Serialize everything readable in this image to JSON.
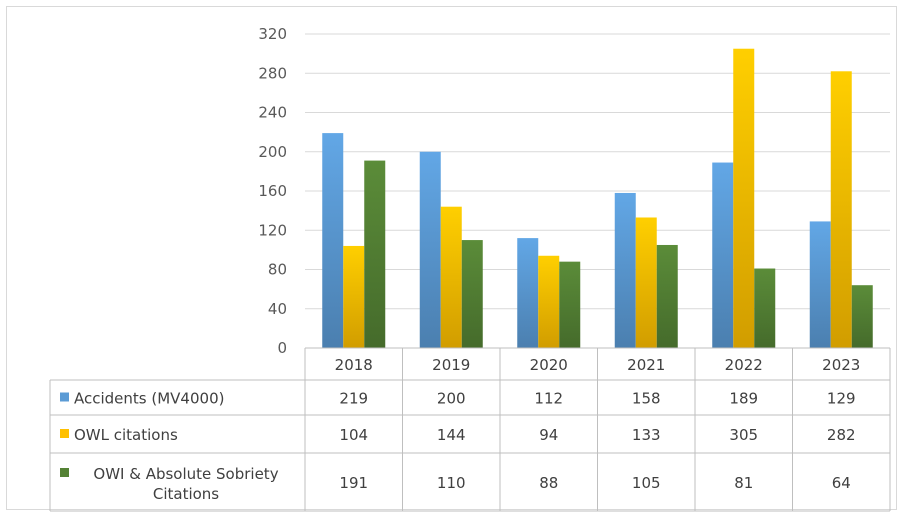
{
  "chart_data": {
    "type": "bar",
    "categories": [
      "2018",
      "2019",
      "2020",
      "2021",
      "2022",
      "2023"
    ],
    "series": [
      {
        "name": "Accidents  (MV4000)",
        "values": [
          219,
          200,
          112,
          158,
          189,
          129
        ],
        "color": "#5b9bd5"
      },
      {
        "name": "OWL citations",
        "values": [
          104,
          144,
          94,
          133,
          305,
          282
        ],
        "color": "#ffc000"
      },
      {
        "name": "OWI & Absolute Sobriety Citations",
        "name_lines": [
          "OWI & Absolute Sobriety",
          "Citations"
        ],
        "values": [
          191,
          110,
          88,
          105,
          81,
          64
        ],
        "color": "#548235"
      }
    ],
    "ylim": [
      0,
      320
    ],
    "yticks": [
      0,
      40,
      80,
      120,
      160,
      200,
      240,
      280,
      320
    ],
    "grid": true,
    "data_table": true,
    "legend": "data-table-rows"
  }
}
